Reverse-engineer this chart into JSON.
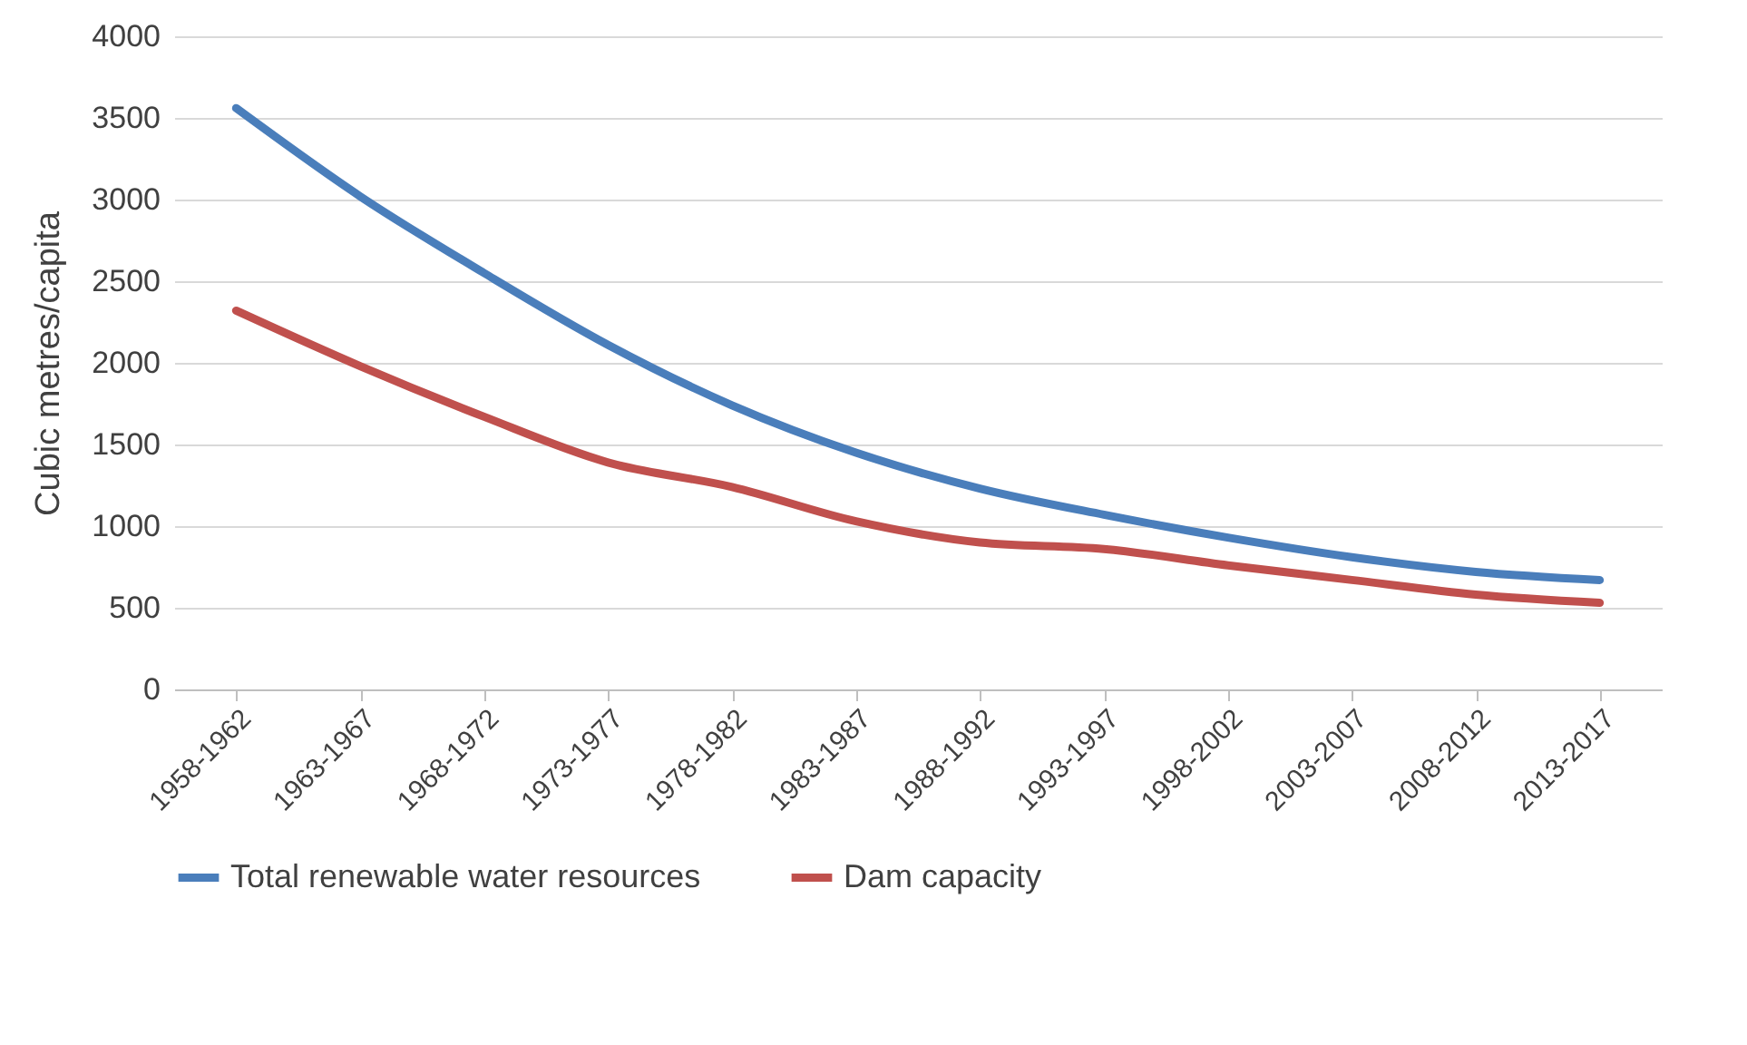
{
  "chart_data": {
    "type": "line",
    "ylabel": "Cubic metres/capita",
    "categories": [
      "1958-1962",
      "1963-1967",
      "1968-1972",
      "1973-1977",
      "1978-1982",
      "1983-1987",
      "1988-1992",
      "1993-1997",
      "1998-2002",
      "2003-2007",
      "2008-2012",
      "2013-2017"
    ],
    "series": [
      {
        "name": "Total renewable water resources",
        "color": "#4a7ebb",
        "values": [
          3560,
          3020,
          2550,
          2110,
          1740,
          1450,
          1230,
          1070,
          930,
          810,
          720,
          670
        ]
      },
      {
        "name": "Dam capacity",
        "color": "#c0504d",
        "values": [
          2320,
          1980,
          1670,
          1390,
          1240,
          1030,
          900,
          860,
          760,
          670,
          580,
          530
        ]
      }
    ],
    "ylim": [
      0,
      4000
    ],
    "yticks": [
      0,
      500,
      1000,
      1500,
      2000,
      2500,
      3000,
      3500,
      4000
    ],
    "grid": "y",
    "legend": "bottom",
    "line_style": "solid"
  }
}
